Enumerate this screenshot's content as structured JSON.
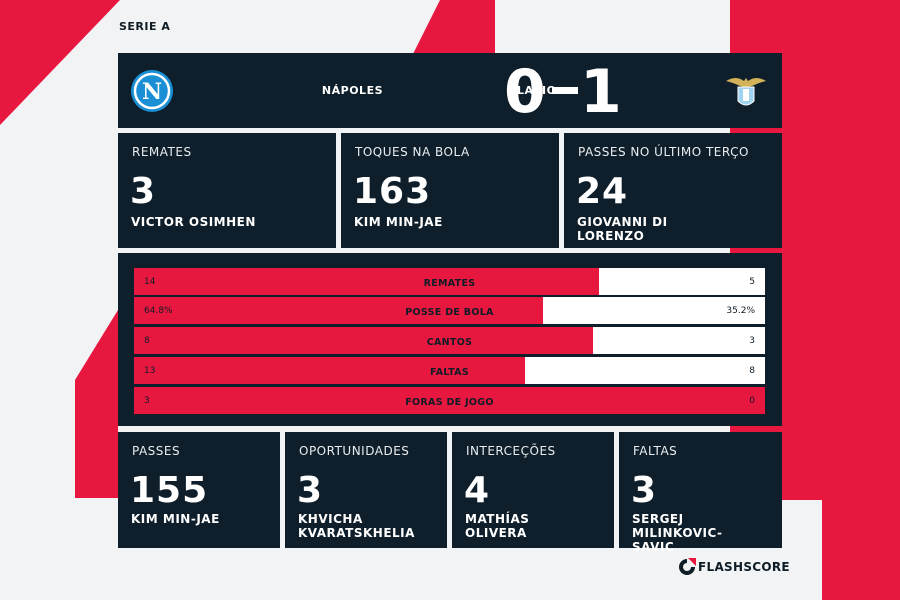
{
  "colors": {
    "accent": "#e8173f",
    "panel": "#0e1f2b",
    "page": "#f2f3f5"
  },
  "league": "SERIE A",
  "match": {
    "home_team": "NÁPOLES",
    "away_team": "LAZIO",
    "home_score": 0,
    "away_score": 1,
    "home_crest_icon": "napoli-crest-icon",
    "away_crest_icon": "lazio-eagle-crest-icon"
  },
  "top_cards": [
    {
      "title": "REMATES",
      "value": "3",
      "player": "VICTOR OSIMHEN"
    },
    {
      "title": "TOQUES NA BOLA",
      "value": "163",
      "player": "KIM MIN-JAE"
    },
    {
      "title": "PASSES NO ÚLTIMO TERÇO",
      "value": "24",
      "player": "GIOVANNI DI LORENZO"
    }
  ],
  "chart_data": {
    "type": "bar",
    "categories": [
      "REMATES",
      "POSSE DE BOLA",
      "CANTOS",
      "FALTAS",
      "FORAS DE JOGO"
    ],
    "home_labels": [
      "14",
      "64.8%",
      "8",
      "13",
      "3"
    ],
    "away_labels": [
      "5",
      "35.2%",
      "3",
      "8",
      "0"
    ],
    "series": [
      {
        "name": "NÁPOLES",
        "values": [
          14,
          64.8,
          8,
          13,
          3
        ]
      },
      {
        "name": "LAZIO",
        "values": [
          5,
          35.2,
          3,
          8,
          0
        ]
      }
    ]
  },
  "bottom_cards": [
    {
      "title": "PASSES",
      "value": "155",
      "player": "KIM MIN-JAE"
    },
    {
      "title": "OPORTUNIDADES",
      "value": "3",
      "player": "KHVICHA KVARATSKHELIA"
    },
    {
      "title": "INTERCEÇÕES",
      "value": "4",
      "player": "MATHÍAS OLIVERA"
    },
    {
      "title": "FALTAS",
      "value": "3",
      "player": "SERGEJ MILINKOVIC-SAVIC"
    }
  ],
  "brand": {
    "name": "FLASHSCORE",
    "icon": "flashscore-logo-icon"
  }
}
